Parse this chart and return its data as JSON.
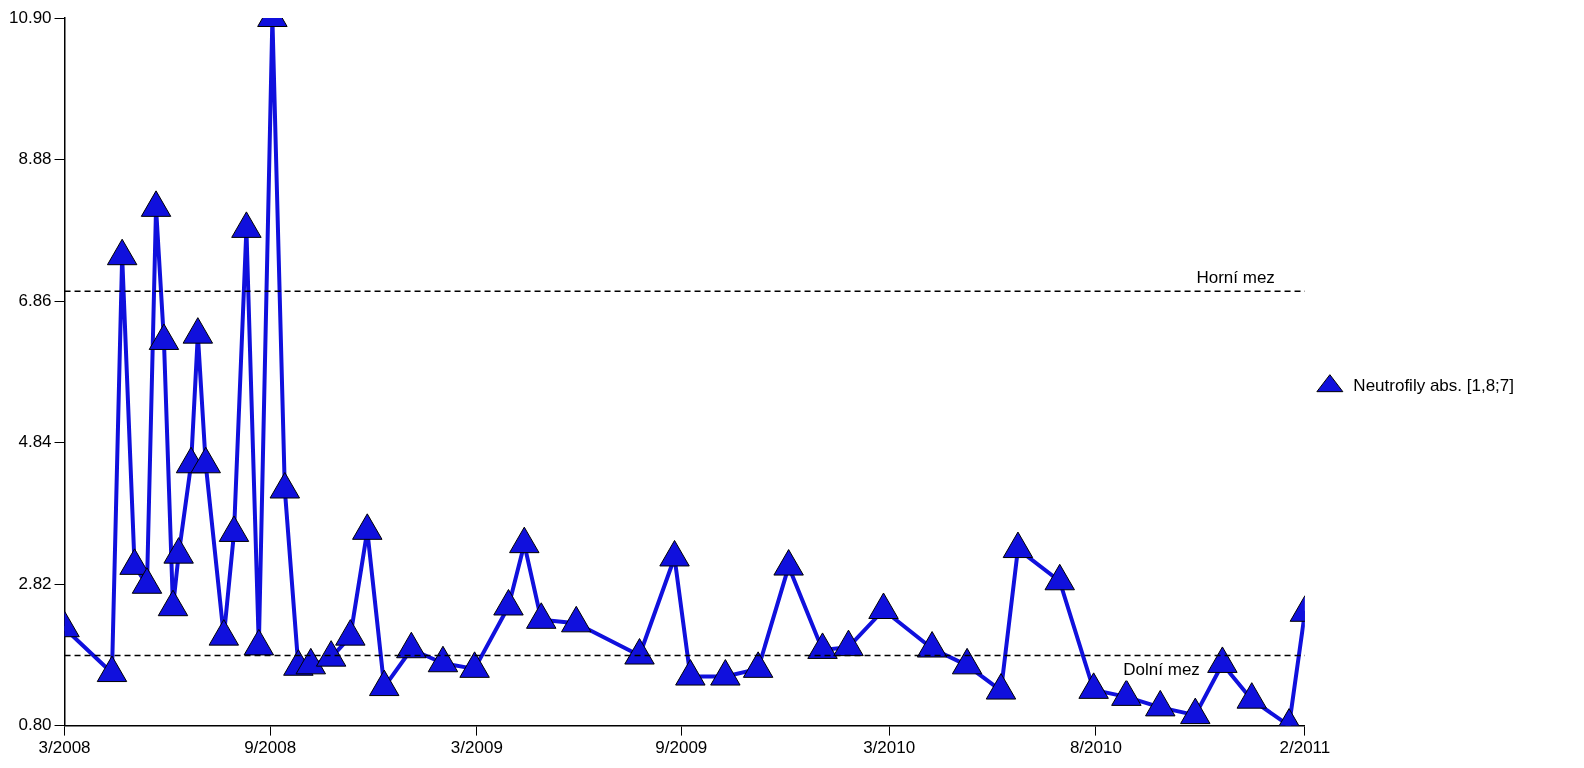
{
  "chart_data": {
    "type": "line",
    "x": [
      "2008-03-01",
      "2008-04-12",
      "2008-04-21",
      "2008-05-02",
      "2008-05-13",
      "2008-05-21",
      "2008-05-28",
      "2008-06-05",
      "2008-06-10",
      "2008-06-21",
      "2008-06-27",
      "2008-07-04",
      "2008-07-20",
      "2008-07-29",
      "2008-08-09",
      "2008-08-20",
      "2008-09-01",
      "2008-09-12",
      "2008-09-24",
      "2008-10-05",
      "2008-10-23",
      "2008-11-09",
      "2008-11-24",
      "2008-12-09",
      "2009-01-02",
      "2009-01-30",
      "2009-02-27",
      "2009-03-29",
      "2009-04-12",
      "2009-04-27",
      "2009-05-28",
      "2009-07-23",
      "2009-08-23",
      "2009-09-06",
      "2009-10-07",
      "2009-11-05",
      "2009-12-02",
      "2010-01-01",
      "2010-01-24",
      "2010-02-24",
      "2010-04-08",
      "2010-05-09",
      "2010-06-08",
      "2010-06-23",
      "2010-07-30",
      "2010-08-29",
      "2010-09-27",
      "2010-10-27",
      "2010-11-27",
      "2010-12-21",
      "2011-01-16",
      "2011-02-18",
      "2011-03-04"
    ],
    "series": [
      {
        "name": "Neutrofily abs. [1,8;7]",
        "color": "#1010dd",
        "values": [
          2.19,
          1.55,
          7.5,
          3.08,
          2.81,
          8.19,
          6.29,
          2.49,
          3.24,
          4.53,
          6.38,
          4.53,
          2.07,
          3.55,
          7.89,
          1.93,
          10.9,
          4.17,
          1.64,
          1.66,
          1.77,
          2.07,
          3.58,
          1.35,
          1.89,
          1.69,
          1.61,
          2.5,
          3.39,
          2.31,
          2.26,
          1.8,
          3.2,
          1.5,
          1.5,
          1.61,
          3.07,
          1.88,
          1.92,
          2.45,
          1.9,
          1.66,
          1.3,
          3.32,
          2.86,
          1.31,
          1.21,
          1.06,
          0.95,
          1.68,
          1.17,
          0.8,
          2.41
        ]
      }
    ],
    "xlim": [
      "2008-03-01",
      "2011-03-04"
    ],
    "xticks": [
      {
        "value": "2008-03-01",
        "label": "3/2008"
      },
      {
        "value": "2008-08-30",
        "label": "9/2008"
      },
      {
        "value": "2009-03-01",
        "label": "3/2009"
      },
      {
        "value": "2009-08-29",
        "label": "9/2009"
      },
      {
        "value": "2010-03-01",
        "label": "3/2010"
      },
      {
        "value": "2010-08-31",
        "label": "8/2010"
      },
      {
        "value": "2011-03-04",
        "label": "2/2011"
      }
    ],
    "ylim": [
      0.8,
      10.9
    ],
    "yticks": [
      {
        "value": 0.8,
        "label": "0.80"
      },
      2.82,
      4.84,
      6.86,
      8.88,
      {
        "value": 10.9,
        "label": "10.90"
      }
    ],
    "ref_lines": [
      {
        "axis": "y",
        "value": 7.0,
        "label": "Horní mez",
        "color": "#000000",
        "line_style": "dashed"
      },
      {
        "axis": "y",
        "value": 1.8,
        "label": "Dolní mez",
        "color": "#000000",
        "line_style": "dashed"
      }
    ],
    "grid": false,
    "legend": "right",
    "marker": "triangle",
    "line_style": "solid"
  }
}
